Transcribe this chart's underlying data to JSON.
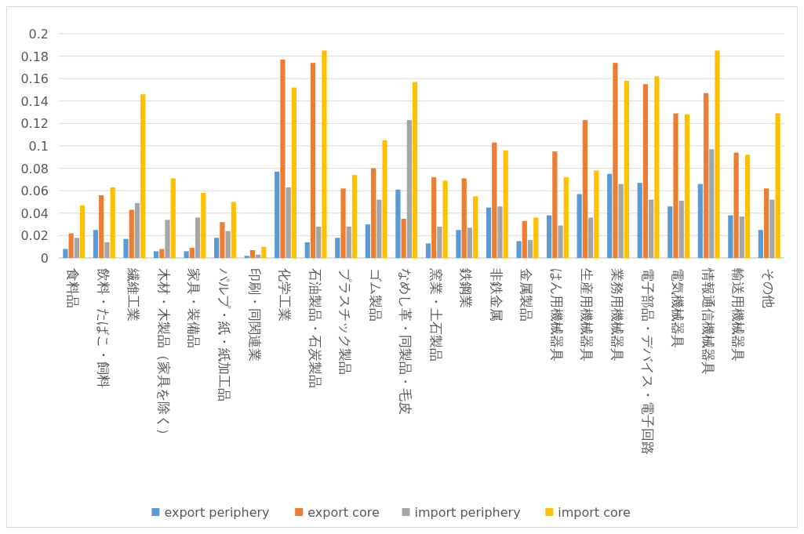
{
  "chart_data": {
    "type": "bar",
    "categories": [
      "食料品",
      "飲料・たばこ・飼料",
      "繊維工業",
      "木材・木製品（家具を除く）",
      "家具・装備品",
      "パルプ・紙・紙加工品",
      "印刷・同関連業",
      "化学工業",
      "石油製品・石炭製品",
      "プラスチック製品",
      "ゴム製品",
      "なめし革・同製品・毛皮",
      "窯業・土石製品",
      "鉄鋼業",
      "非鉄金属",
      "金属製品",
      "はん用機械器具",
      "生産用機械器具",
      "業務用機械器具",
      "電子部品・デバイス・電子回路",
      "電気機械器具",
      "情報通信機械器具",
      "輸送用機械器具",
      "その他"
    ],
    "series": [
      {
        "name": "export periphery",
        "color": "#5b9bd5",
        "values": [
          0.008,
          0.025,
          0.017,
          0.006,
          0.006,
          0.018,
          0.002,
          0.077,
          0.014,
          0.018,
          0.03,
          0.061,
          0.013,
          0.025,
          0.045,
          0.015,
          0.038,
          0.057,
          0.075,
          0.067,
          0.046,
          0.066,
          0.038,
          0.025
        ]
      },
      {
        "name": "export core",
        "color": "#ed7d31",
        "values": [
          0.022,
          0.056,
          0.043,
          0.008,
          0.009,
          0.032,
          0.007,
          0.177,
          0.174,
          0.062,
          0.08,
          0.035,
          0.072,
          0.071,
          0.103,
          0.033,
          0.095,
          0.123,
          0.174,
          0.155,
          0.129,
          0.147,
          0.094,
          0.062
        ]
      },
      {
        "name": "import periphery",
        "color": "#a5a5a5",
        "values": [
          0.018,
          0.014,
          0.049,
          0.034,
          0.036,
          0.024,
          0.003,
          0.063,
          0.028,
          0.028,
          0.052,
          0.123,
          0.028,
          0.027,
          0.046,
          0.016,
          0.029,
          0.036,
          0.066,
          0.052,
          0.051,
          0.097,
          0.037,
          0.052
        ]
      },
      {
        "name": "import core",
        "color": "#ffc000",
        "values": [
          0.047,
          0.063,
          0.146,
          0.071,
          0.058,
          0.05,
          0.01,
          0.152,
          0.185,
          0.074,
          0.105,
          0.157,
          0.069,
          0.055,
          0.096,
          0.036,
          0.072,
          0.078,
          0.158,
          0.162,
          0.128,
          0.185,
          0.092,
          0.129
        ]
      }
    ],
    "ylim": [
      0,
      0.2
    ],
    "yticks": [
      0,
      0.02,
      0.04,
      0.06,
      0.08,
      0.1,
      0.12,
      0.14,
      0.16,
      0.18,
      0.2
    ],
    "grid": "y",
    "legend": "bottom"
  }
}
